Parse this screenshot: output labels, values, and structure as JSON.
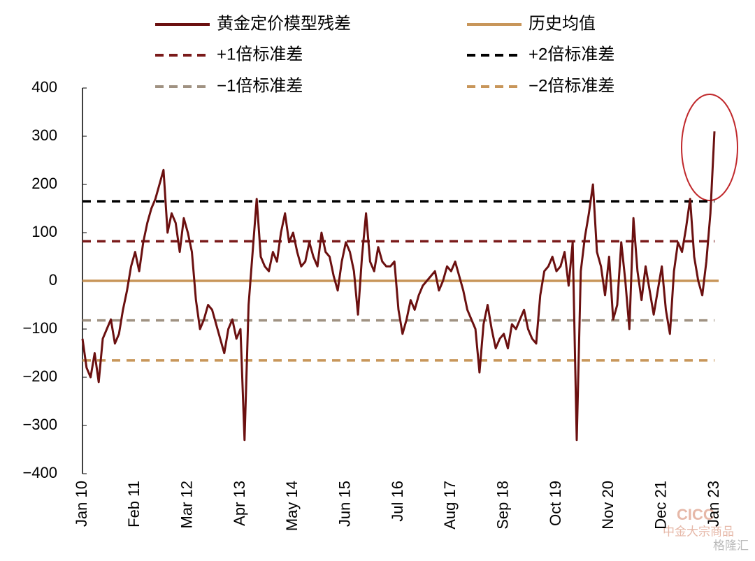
{
  "chart_data": {
    "type": "line",
    "categories": [
      "Jan 10",
      null,
      null,
      null,
      null,
      null,
      null,
      null,
      null,
      null,
      null,
      null,
      null,
      "Feb 11",
      null,
      null,
      null,
      null,
      null,
      null,
      null,
      null,
      null,
      null,
      null,
      null,
      "Mar 12",
      null,
      null,
      null,
      null,
      null,
      null,
      null,
      null,
      null,
      null,
      null,
      null,
      "Apr 13",
      null,
      null,
      null,
      null,
      null,
      null,
      null,
      null,
      null,
      null,
      null,
      null,
      "May 14",
      null,
      null,
      null,
      null,
      null,
      null,
      null,
      null,
      null,
      null,
      null,
      null,
      "Jun 15",
      null,
      null,
      null,
      null,
      null,
      null,
      null,
      null,
      null,
      null,
      null,
      null,
      "Jul 16",
      null,
      null,
      null,
      null,
      null,
      null,
      null,
      null,
      null,
      null,
      null,
      null,
      "Aug 17",
      null,
      null,
      null,
      null,
      null,
      null,
      null,
      null,
      null,
      null,
      null,
      null,
      "Sep 18",
      null,
      null,
      null,
      null,
      null,
      null,
      null,
      null,
      null,
      null,
      null,
      null,
      "Oct 19",
      null,
      null,
      null,
      null,
      null,
      null,
      null,
      null,
      null,
      null,
      null,
      null,
      "Nov 20",
      null,
      null,
      null,
      null,
      null,
      null,
      null,
      null,
      null,
      null,
      null,
      null,
      "Dec 21",
      null,
      null,
      null,
      null,
      null,
      null,
      null,
      null,
      null,
      null,
      null,
      null,
      "Jan 23"
    ],
    "series": [
      {
        "name": "黄金定价模型残差",
        "color": "#6b1010",
        "values": [
          -120,
          -180,
          -200,
          -150,
          -210,
          -120,
          -100,
          -80,
          -130,
          -110,
          -60,
          -20,
          30,
          60,
          20,
          80,
          120,
          150,
          170,
          200,
          230,
          100,
          140,
          120,
          60,
          130,
          100,
          60,
          -40,
          -100,
          -80,
          -50,
          -60,
          -90,
          -120,
          -150,
          -100,
          -80,
          -120,
          -100,
          -330,
          -50,
          60,
          170,
          50,
          30,
          20,
          60,
          40,
          100,
          140,
          80,
          100,
          60,
          30,
          40,
          80,
          50,
          30,
          100,
          60,
          50,
          10,
          -20,
          40,
          80,
          60,
          20,
          -70,
          50,
          140,
          40,
          20,
          70,
          40,
          30,
          30,
          40,
          -60,
          -110,
          -80,
          -40,
          -60,
          -30,
          -10,
          0,
          10,
          20,
          -20,
          0,
          30,
          20,
          40,
          10,
          -20,
          -60,
          -80,
          -100,
          -190,
          -90,
          -50,
          -100,
          -140,
          -120,
          -110,
          -140,
          -90,
          -100,
          -80,
          -60,
          -100,
          -120,
          -130,
          -30,
          20,
          30,
          50,
          20,
          30,
          60,
          -10,
          80,
          -330,
          20,
          90,
          140,
          200,
          60,
          30,
          -30,
          50,
          -80,
          -50,
          80,
          0,
          -100,
          130,
          20,
          -40,
          30,
          -20,
          -70,
          -20,
          30,
          -60,
          -110,
          20,
          80,
          60,
          110,
          170,
          50,
          0,
          -30,
          40,
          140,
          310
        ]
      }
    ],
    "reference_lines": [
      {
        "name": "历史均值",
        "value": 0,
        "color": "#c8965a",
        "dash": false
      },
      {
        "name": "+1倍标准差",
        "value": 82,
        "color": "#7a1a1a",
        "dash": true
      },
      {
        "name": "+2倍标准差",
        "value": 165,
        "color": "#000000",
        "dash": true
      },
      {
        "name": "−1倍标准差",
        "value": -82,
        "color": "#a09282",
        "dash": true
      },
      {
        "name": "−2倍标准差",
        "value": -165,
        "color": "#c8965a",
        "dash": true
      }
    ],
    "ylim": [
      -400,
      400
    ],
    "yticks": [
      {
        "value": -400,
        "label": "−400"
      },
      {
        "value": -300,
        "label": "−300"
      },
      {
        "value": -200,
        "label": "−200"
      },
      {
        "value": -100,
        "label": "−100"
      },
      0,
      100,
      200,
      300,
      400
    ],
    "watermark": [
      "CICC",
      "中金大宗商品",
      "格隆汇"
    ]
  }
}
